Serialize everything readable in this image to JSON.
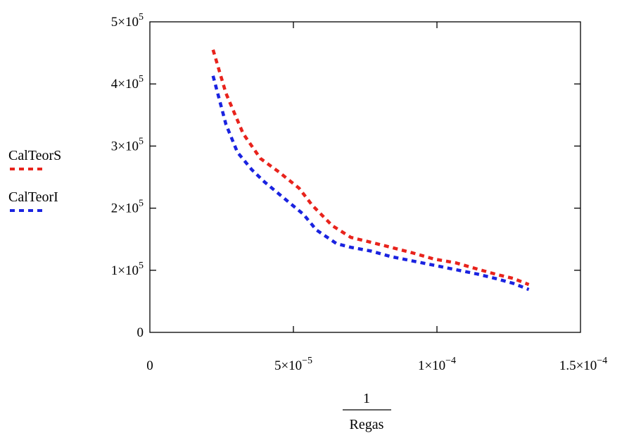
{
  "chart_data": {
    "type": "line",
    "xlabel": {
      "numerator": "1",
      "denominator": "Regas"
    },
    "ylabel": "",
    "xlim": [
      0,
      0.00015
    ],
    "ylim": [
      0,
      500000
    ],
    "x_ticks": [
      {
        "value": 0,
        "mantissa": "0",
        "exponent": ""
      },
      {
        "value": 5e-05,
        "mantissa": "5×10",
        "exponent": "−5"
      },
      {
        "value": 0.0001,
        "mantissa": "1×10",
        "exponent": "−4"
      },
      {
        "value": 0.00015,
        "mantissa": "1.5×10",
        "exponent": "−4"
      }
    ],
    "y_ticks": [
      {
        "value": 0,
        "mantissa": "0",
        "exponent": ""
      },
      {
        "value": 100000,
        "mantissa": "1×10",
        "exponent": "5"
      },
      {
        "value": 200000,
        "mantissa": "2×10",
        "exponent": "5"
      },
      {
        "value": 300000,
        "mantissa": "3×10",
        "exponent": "5"
      },
      {
        "value": 400000,
        "mantissa": "4×10",
        "exponent": "5"
      },
      {
        "value": 500000,
        "mantissa": "5×10",
        "exponent": "5"
      }
    ],
    "grid": false,
    "legend_position": "left",
    "series": [
      {
        "name": "CalTeorS",
        "color": "#e8231c",
        "x": [
          2.2e-05,
          2.65e-05,
          3.25e-05,
          3.85e-05,
          4.5e-05,
          5.2e-05,
          5.65e-05,
          6.35e-05,
          7e-05,
          7.7e-05,
          8.4e-05,
          9.15e-05,
          9.9e-05,
          0.0001065,
          0.000114,
          0.000121,
          0.0001265,
          0.000132
        ],
        "y": [
          455000,
          385000,
          320000,
          280000,
          258000,
          232000,
          205000,
          172000,
          153000,
          145000,
          137000,
          128000,
          118000,
          112000,
          102000,
          93000,
          87000,
          77000
        ]
      },
      {
        "name": "CalTeorI",
        "color": "#1a23e0",
        "x": [
          2.2e-05,
          2.65e-05,
          3.05e-05,
          3.55e-05,
          4e-05,
          4.7e-05,
          5.35e-05,
          5.8e-05,
          6.5e-05,
          7e-05,
          7.7e-05,
          8.4e-05,
          9.15e-05,
          9.9e-05,
          0.0001065,
          0.000114,
          0.000121,
          0.0001265,
          0.000132
        ],
        "y": [
          413000,
          335000,
          290000,
          262000,
          242000,
          215000,
          190000,
          165000,
          143000,
          137000,
          131000,
          122000,
          115000,
          108000,
          101000,
          94000,
          86000,
          79000,
          69000
        ]
      }
    ]
  }
}
